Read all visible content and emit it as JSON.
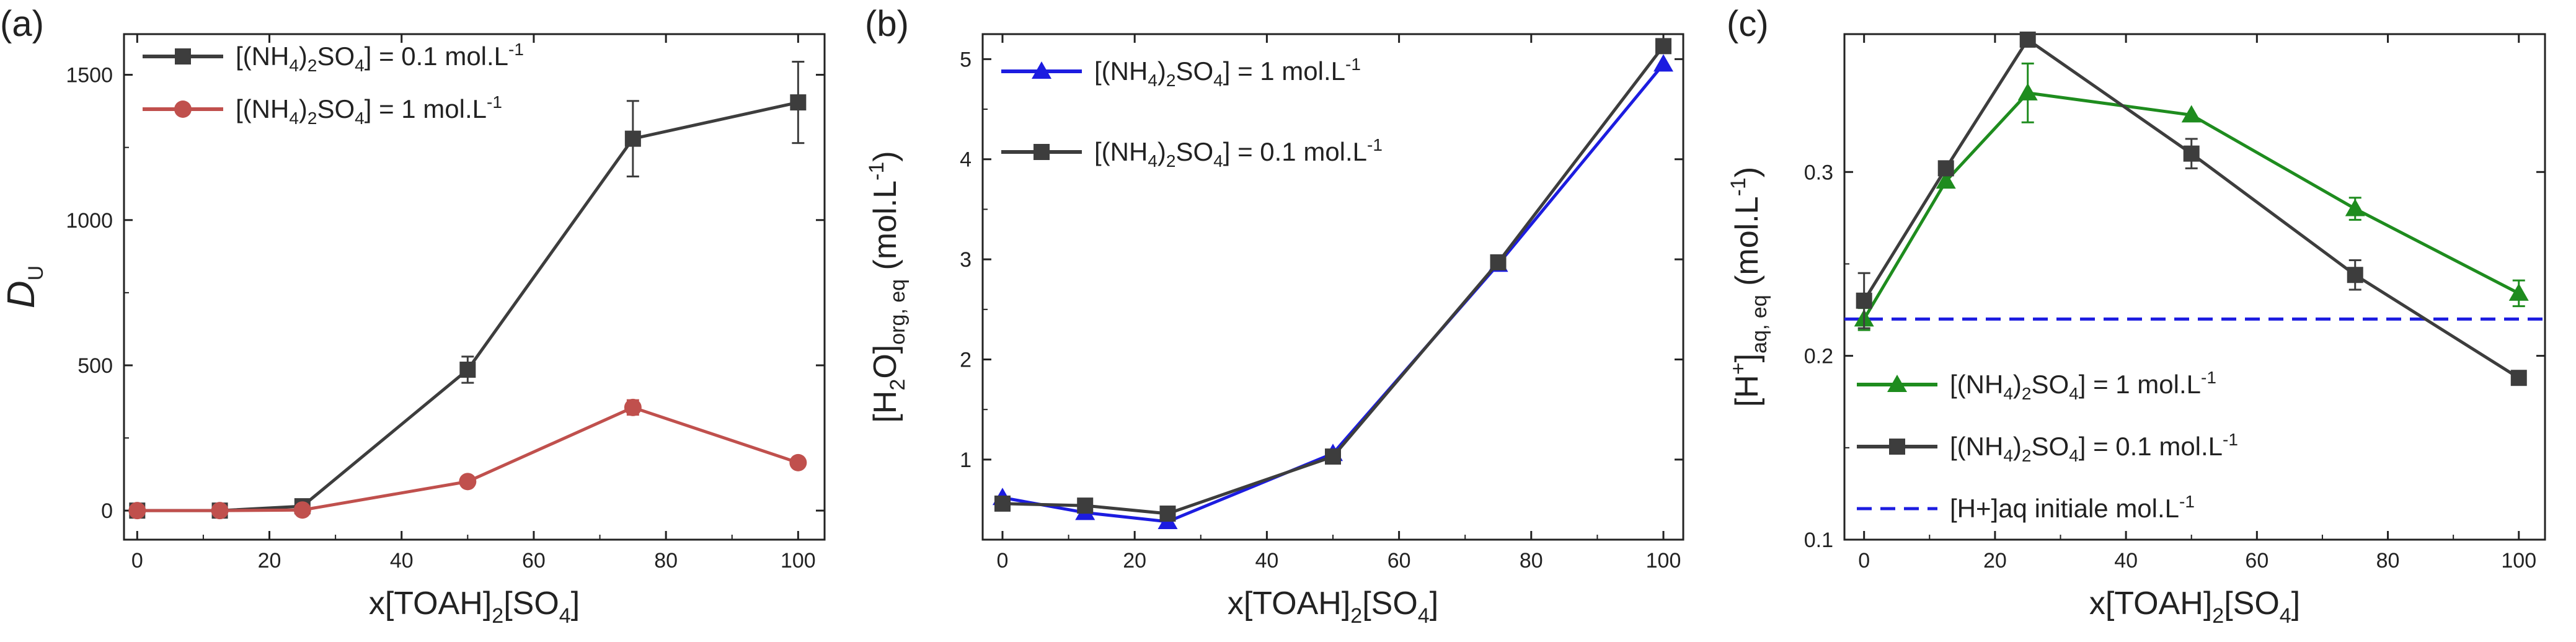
{
  "chart_data": [
    {
      "type": "line",
      "panel_label": "(a)",
      "xlabel": {
        "main": "x[TOAH]",
        "sub": "2",
        "tail": "[SO",
        "sub2": "4",
        "end": "]"
      },
      "ylabel": {
        "main": "D",
        "sub": "U"
      },
      "xlim": [
        -2,
        104
      ],
      "ylim": [
        -100,
        1640
      ],
      "xticks": [
        0,
        20,
        40,
        60,
        80,
        100
      ],
      "yticks": [
        0,
        500,
        1000,
        1500
      ],
      "legend_position": "top-left",
      "series": [
        {
          "name": "[(NH4)2SO4] = 0.1 mol.L-1",
          "label_parts": [
            "[(NH",
            "4",
            ")",
            "2",
            "SO",
            "4",
            "] = 0.1 mol.L",
            "-1"
          ],
          "color": "#3d3d3d",
          "marker": "square",
          "x": [
            0,
            12.5,
            25,
            50,
            75,
            100
          ],
          "y": [
            0,
            0,
            15,
            485,
            1280,
            1405
          ],
          "err": [
            0,
            0,
            0,
            45,
            130,
            140
          ]
        },
        {
          "name": "[(NH4)2SO4] = 1 mol.L-1",
          "label_parts": [
            "[(NH",
            "4",
            ")",
            "2",
            "SO",
            "4",
            "] = 1 mol.L",
            "-1"
          ],
          "color": "#c0504d",
          "marker": "circle",
          "x": [
            0,
            12.5,
            25,
            50,
            75,
            100
          ],
          "y": [
            0,
            0,
            2,
            100,
            355,
            165
          ],
          "err": [
            0,
            0,
            0,
            0,
            25,
            0
          ]
        }
      ]
    },
    {
      "type": "line",
      "panel_label": "(b)",
      "xlabel": {
        "main": "x[TOAH]",
        "sub": "2",
        "tail": "[SO",
        "sub2": "4",
        "end": "]"
      },
      "ylabel": {
        "pre": "[H",
        "sub": "2",
        "mid": "O]",
        "sub2": "org, eq",
        "end": " (mol.L",
        "sup": "-1",
        "close": ")"
      },
      "xlim": [
        -3,
        103
      ],
      "ylim": [
        0.2,
        5.25
      ],
      "xticks": [
        0,
        20,
        40,
        60,
        80,
        100
      ],
      "yticks": [
        1,
        2,
        3,
        4,
        5
      ],
      "legend_position": "top-left",
      "series": [
        {
          "name": "[(NH4)2SO4] = 1 mol.L-1",
          "label_parts": [
            "[(NH",
            "4",
            ")",
            "2",
            "SO",
            "4",
            "] = 1 mol.L",
            "-1"
          ],
          "color": "#1c1ce0",
          "marker": "triangle",
          "x": [
            0,
            12.5,
            25,
            50,
            75,
            100
          ],
          "y": [
            0.62,
            0.47,
            0.38,
            1.06,
            2.95,
            4.95
          ],
          "err": [
            0,
            0,
            0,
            0,
            0,
            0
          ]
        },
        {
          "name": "[(NH4)2SO4] = 0.1 mol.L-1",
          "label_parts": [
            "[(NH",
            "4",
            ")",
            "2",
            "SO",
            "4",
            "] = 0.1 mol.L",
            "-1"
          ],
          "color": "#3d3d3d",
          "marker": "square",
          "x": [
            0,
            12.5,
            25,
            50,
            75,
            100
          ],
          "y": [
            0.56,
            0.54,
            0.46,
            1.03,
            2.97,
            5.13
          ],
          "err": [
            0,
            0,
            0,
            0,
            0,
            0
          ]
        }
      ]
    },
    {
      "type": "line",
      "panel_label": "(c)",
      "xlabel": {
        "main": "x[TOAH]",
        "sub": "2",
        "tail": "[SO",
        "sub2": "4",
        "end": "]"
      },
      "ylabel": {
        "pre": "[H",
        "sup": "+",
        "mid": "]",
        "sub": "aq, eq",
        "end": " (mol.L",
        "sup2": "-1",
        "close": ")"
      },
      "xlim": [
        -3,
        104
      ],
      "ylim": [
        0.1,
        0.375
      ],
      "xticks": [
        0,
        20,
        40,
        60,
        80,
        100
      ],
      "yticks": [
        0.1,
        0.2,
        0.3
      ],
      "legend_position": "bottom-left",
      "series": [
        {
          "name": "[(NH4)2SO4] = 1 mol.L-1",
          "label_parts": [
            "[(NH",
            "4",
            ")",
            "2",
            "SO",
            "4",
            "] = 1 mol.L",
            "-1"
          ],
          "color": "#1e8c1e",
          "marker": "triangle",
          "x": [
            0,
            12.5,
            25,
            50,
            75,
            100
          ],
          "y": [
            0.22,
            0.295,
            0.343,
            0.331,
            0.28,
            0.234
          ],
          "err": [
            0.006,
            0,
            0.016,
            0,
            0.006,
            0.007
          ]
        },
        {
          "name": "[(NH4)2SO4] = 0.1 mol.L-1",
          "label_parts": [
            "[(NH",
            "4",
            ")",
            "2",
            "SO",
            "4",
            "] = 0.1 mol.L",
            "-1"
          ],
          "color": "#3d3d3d",
          "marker": "square",
          "x": [
            0,
            12.5,
            25,
            50,
            75,
            100
          ],
          "y": [
            0.23,
            0.302,
            0.372,
            0.31,
            0.244,
            0.188
          ],
          "err": [
            0.015,
            0,
            0,
            0.008,
            0.008,
            0
          ]
        }
      ],
      "reference_line": {
        "name": "[H+]aq initiale mol.L-1",
        "label_parts": [
          "[H+]aq initiale mol.L",
          "-1"
        ],
        "y": 0.22,
        "color": "#1c1ce0",
        "style": "dashed"
      }
    }
  ]
}
